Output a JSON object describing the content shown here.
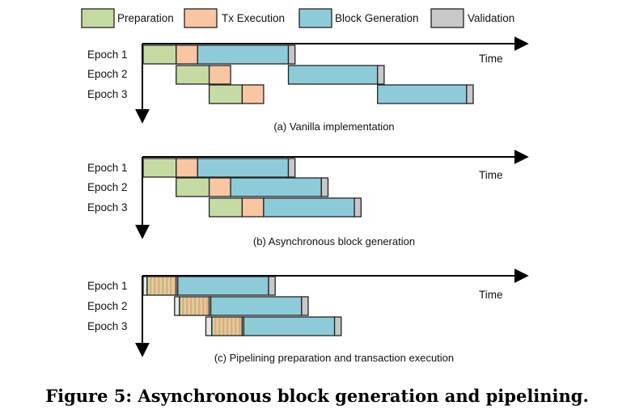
{
  "legend": [
    {
      "label": "Preparation",
      "color": "#c6dba3",
      "icon": "preparation-swatch"
    },
    {
      "label": "Tx Execution",
      "color": "#f8c6a3",
      "icon": "tx-execution-swatch"
    },
    {
      "label": "Block Generation",
      "color": "#8ecbd9",
      "icon": "block-generation-swatch"
    },
    {
      "label": "Validation",
      "color": "#c8c8c8",
      "icon": "validation-swatch"
    }
  ],
  "time_label": "Time",
  "panels": [
    {
      "caption": "(a) Vanilla implementation",
      "epochs": [
        {
          "label": "Epoch 1",
          "segments": [
            [
              "prep",
              0,
              1
            ],
            [
              "tx",
              1,
              1.65
            ],
            [
              "block",
              1.65,
              4.4
            ],
            [
              "val",
              4.4,
              4.6
            ]
          ]
        },
        {
          "label": "Epoch 2",
          "segments": [
            [
              "prep",
              1,
              2
            ],
            [
              "tx",
              2,
              2.65
            ],
            [
              "block",
              4.4,
              7.1
            ],
            [
              "val",
              7.1,
              7.3
            ]
          ]
        },
        {
          "label": "Epoch 3",
          "segments": [
            [
              "prep",
              2,
              3
            ],
            [
              "tx",
              3,
              3.65
            ],
            [
              "block",
              7.1,
              9.8
            ],
            [
              "val",
              9.8,
              10.0
            ]
          ]
        }
      ]
    },
    {
      "caption": "(b) Asynchronous block generation",
      "epochs": [
        {
          "label": "Epoch 1",
          "segments": [
            [
              "prep",
              0,
              1
            ],
            [
              "tx",
              1,
              1.65
            ],
            [
              "block",
              1.65,
              4.4
            ],
            [
              "val",
              4.4,
              4.6
            ]
          ]
        },
        {
          "label": "Epoch 2",
          "segments": [
            [
              "prep",
              1,
              2
            ],
            [
              "tx",
              2,
              2.65
            ],
            [
              "block",
              2.65,
              5.4
            ],
            [
              "val",
              5.4,
              5.6
            ]
          ]
        },
        {
          "label": "Epoch 3",
          "segments": [
            [
              "prep",
              2,
              3
            ],
            [
              "tx",
              3,
              3.65
            ],
            [
              "block",
              3.65,
              6.4
            ],
            [
              "val",
              6.4,
              6.6
            ]
          ]
        }
      ]
    },
    {
      "caption": "(c) Pipelining preparation and transaction execution",
      "epochs": [
        {
          "label": "Epoch 1",
          "segments": [
            [
              "mark",
              0,
              0.12
            ],
            [
              "pipe",
              0.12,
              1.0
            ],
            [
              "mark",
              1.0,
              1.05
            ],
            [
              "block",
              1.05,
              3.8
            ],
            [
              "val",
              3.8,
              4.0
            ]
          ]
        },
        {
          "label": "Epoch 2",
          "segments": [
            [
              "mark",
              0.95,
              1.1
            ],
            [
              "pipe",
              1.1,
              2.0
            ],
            [
              "mark",
              2.0,
              2.05
            ],
            [
              "block",
              2.05,
              4.8
            ],
            [
              "val",
              4.8,
              5.0
            ]
          ]
        },
        {
          "label": "Epoch 3",
          "segments": [
            [
              "mark",
              1.9,
              2.08
            ],
            [
              "pipe",
              2.08,
              3.0
            ],
            [
              "mark",
              3.0,
              3.05
            ],
            [
              "block",
              3.05,
              5.8
            ],
            [
              "val",
              5.8,
              6.0
            ]
          ]
        }
      ]
    }
  ],
  "figure_caption": "Figure 5: Asynchronous block generation and pipelining."
}
